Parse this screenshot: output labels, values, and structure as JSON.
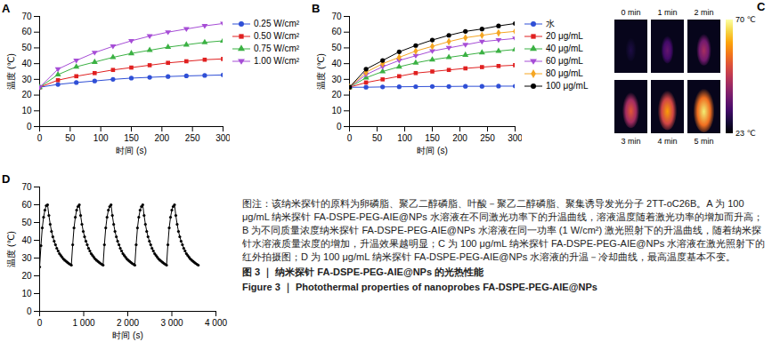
{
  "chart_data": [
    {
      "type": "line",
      "title": "A",
      "x_label": "时间 (s)",
      "y_label": "温度 (℃)",
      "x": [
        0,
        30,
        60,
        90,
        120,
        150,
        180,
        210,
        240,
        270,
        300
      ],
      "series": [
        {
          "name": "0.25 W/cm²",
          "color": "#2f4fd6",
          "marker": "circle",
          "values": [
            25,
            26.8,
            28,
            29,
            30,
            30.8,
            31.3,
            31.8,
            32.2,
            32.5,
            32.8
          ]
        },
        {
          "name": "0.50 W/cm²",
          "color": "#e02020",
          "marker": "square",
          "values": [
            25,
            29.5,
            32,
            34,
            36,
            37.5,
            39,
            40.5,
            41.5,
            42.5,
            43
          ]
        },
        {
          "name": "0.75 W/cm²",
          "color": "#3bb143",
          "marker": "triangle",
          "values": [
            25,
            33,
            38,
            41,
            44,
            46.5,
            48.5,
            50.5,
            52,
            53.5,
            54.5
          ]
        },
        {
          "name": "1.00 W/cm²",
          "color": "#a64dd6",
          "marker": "triangle-down",
          "values": [
            25,
            36.5,
            42,
            47,
            51,
            54.5,
            57.5,
            60,
            62,
            64,
            65.5
          ]
        }
      ],
      "xlim": [
        0,
        300
      ],
      "xticks": [
        0,
        50,
        100,
        150,
        200,
        250,
        300
      ],
      "ylim": [
        0,
        70
      ],
      "yticks": [
        0,
        10,
        20,
        30,
        40,
        50,
        60,
        70
      ],
      "legend": "right",
      "grid": false
    },
    {
      "type": "line",
      "title": "B",
      "x_label": "时间 (s)",
      "y_label": "温度 (℃)",
      "x": [
        0,
        30,
        60,
        90,
        120,
        150,
        180,
        210,
        240,
        270,
        300
      ],
      "series": [
        {
          "name": "水",
          "color": "#2f4fd6",
          "marker": "circle",
          "values": [
            25,
            25,
            25.2,
            25.3,
            25.4,
            25.5,
            25.5,
            25.6,
            25.6,
            25.7,
            25.7
          ]
        },
        {
          "name": "20 μg/mL",
          "color": "#e02020",
          "marker": "square",
          "values": [
            25,
            28,
            30,
            32,
            34,
            35,
            36,
            37,
            37.8,
            38.5,
            39
          ]
        },
        {
          "name": "40 μg/mL",
          "color": "#3bb143",
          "marker": "triangle",
          "values": [
            25,
            31,
            35,
            38,
            40.5,
            42.5,
            44,
            45.5,
            47,
            48,
            49
          ]
        },
        {
          "name": "60 μg/mL",
          "color": "#a64dd6",
          "marker": "triangle-down",
          "values": [
            25,
            33,
            38,
            42,
            45,
            48,
            50,
            52,
            54,
            55,
            56
          ]
        },
        {
          "name": "80 μg/mL",
          "color": "#f5a623",
          "marker": "diamond",
          "values": [
            25,
            34.5,
            40,
            44,
            48,
            51,
            54,
            56.5,
            58,
            59.5,
            60.5
          ]
        },
        {
          "name": "100 μg/mL",
          "color": "#000000",
          "marker": "circle",
          "values": [
            25,
            36.5,
            42,
            47.5,
            51.5,
            55,
            58,
            60.5,
            62,
            64,
            65.5
          ]
        }
      ],
      "xlim": [
        0,
        300
      ],
      "xticks": [
        0,
        50,
        100,
        150,
        200,
        250,
        300
      ],
      "ylim": [
        0,
        70
      ],
      "yticks": [
        0,
        10,
        20,
        30,
        40,
        50,
        60,
        70
      ],
      "legend": "right",
      "grid": false
    },
    {
      "type": "thermal_image",
      "title": "C",
      "frames": [
        "0 min",
        "1 min",
        "2 min",
        "3 min",
        "4 min",
        "5 min"
      ],
      "colorbar": {
        "range": [
          23,
          70
        ],
        "ticks": [
          {
            "value": 23,
            "label": "23 ℃"
          },
          {
            "value": 70,
            "label": "70 ℃"
          }
        ]
      }
    },
    {
      "type": "line",
      "title": "D",
      "x_label": "时间 (s)",
      "y_label": "温度 (℃)",
      "x": [
        0,
        30,
        60,
        90,
        120,
        150,
        180,
        210,
        240,
        270,
        300,
        330,
        360,
        390,
        420,
        450,
        480,
        510,
        540,
        570,
        600,
        630,
        660,
        690,
        720,
        750,
        780,
        810,
        840,
        870,
        900,
        930,
        960,
        990,
        1020,
        1050,
        1080,
        1110,
        1140,
        1170,
        1200,
        1230,
        1260,
        1290,
        1320,
        1350,
        1380,
        1410,
        1440,
        1470,
        1500,
        1530,
        1560,
        1590,
        1620,
        1650,
        1680,
        1710,
        1740,
        1770,
        1800,
        1830,
        1860,
        1890,
        1920,
        1950,
        1980,
        2010,
        2040,
        2070,
        2100,
        2130,
        2160,
        2190,
        2220,
        2250,
        2280,
        2310,
        2340,
        2370,
        2400,
        2430,
        2460,
        2490,
        2520,
        2550,
        2580,
        2610,
        2640,
        2670,
        2700,
        2730,
        2760,
        2790,
        2820,
        2850,
        2880,
        2910,
        2940,
        2970,
        3000,
        3030,
        3060,
        3090,
        3120,
        3150,
        3180,
        3210,
        3240,
        3270,
        3300,
        3330,
        3360,
        3390,
        3420,
        3450,
        3480,
        3510,
        3540,
        3570,
        3600
      ],
      "series": [
        {
          "color": "#000000",
          "marker": "circle",
          "values": [
            25,
            37,
            47,
            53,
            57,
            59.5,
            60,
            54,
            49,
            45,
            42,
            39.5,
            37.5,
            35.5,
            34,
            32.5,
            31.5,
            30.5,
            29.5,
            28.8,
            28.2,
            27.6,
            27,
            26.5,
            26,
            37.5,
            47,
            53,
            57,
            59,
            60,
            54,
            49,
            45,
            42,
            39.5,
            37.5,
            35.5,
            34,
            32.5,
            31.5,
            30.5,
            29.5,
            28.8,
            28.2,
            27.6,
            27,
            26.5,
            26,
            37.5,
            47,
            53,
            57,
            59,
            60,
            54,
            49,
            45,
            42,
            39.5,
            37.5,
            35.5,
            34,
            32.5,
            31.5,
            30.5,
            29.5,
            28.8,
            28.2,
            27.6,
            27,
            26.5,
            26,
            37.5,
            47,
            53,
            57,
            59,
            60,
            54,
            49,
            45,
            42,
            39.5,
            37.5,
            35.5,
            34,
            32.5,
            31.5,
            30.5,
            29.5,
            28.8,
            28.2,
            27.6,
            27,
            26.5,
            26,
            37.5,
            47,
            53,
            57,
            59,
            60,
            54,
            49,
            45,
            42,
            39.5,
            37.5,
            35.5,
            34,
            32.5,
            31.5,
            30.5,
            29.5,
            28.8,
            28.2,
            27.6,
            27,
            26.5,
            26
          ]
        }
      ],
      "xlim": [
        0,
        4000
      ],
      "xticks": [
        0,
        {
          "value": 1000,
          "label": "1 000"
        },
        {
          "value": 2000,
          "label": "2 000"
        },
        {
          "value": 3000,
          "label": "3 000"
        },
        {
          "value": 4000,
          "label": "4 000"
        }
      ],
      "ylim": [
        0,
        70
      ],
      "yticks": [
        0,
        10,
        20,
        30,
        40,
        50,
        60,
        70
      ],
      "grid": false
    }
  ],
  "caption": {
    "note": "图注：该纳米探针的原料为卵磷脂、聚乙二醇磷脂、叶酸－聚乙二醇磷脂、聚集诱导发光分子 2TT-oC26B。A 为 100 μg/mL 纳米探针 FA-DSPE-PEG-AIE@NPs 水溶液在不同激光功率下的升温曲线，溶液温度随着激光功率的增加而升高；B 为不同质量浓度纳米探针 FA-DSPE-PEG-AIE@NPs 水溶液在同一功率 (1 W/cm²) 激光照射下的升温曲线，随着纳米探针水溶液质量浓度的增加，升温效果越明显；C 为 100 μg/mL 纳米探针 FA-DSPE-PEG-AIE@NPs 水溶液在激光照射下的红外拍摄图；D 为 100 μg/mL 纳米探针 FA-DSPE-PEG-AIE@NPs 水溶液的升温－冷却曲线，最高温度基本不变。",
    "title_zh": "图 3 ｜ 纳米探针 FA-DSPE-PEG-AIE@NPs 的光热性能",
    "title_en": "Figure 3 ｜ Photothermal properties of nanoprobes FA-DSPE-PEG-AIE@NPs"
  }
}
